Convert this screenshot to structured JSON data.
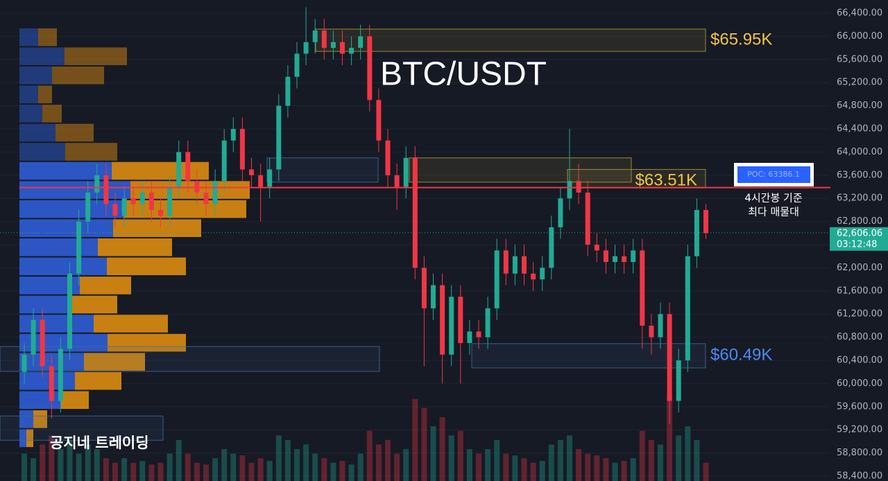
{
  "chart_data": {
    "type": "candlestick",
    "title": "BTC/USDT",
    "watermark": "공지네 트레이딩",
    "up_color": "#22ab94",
    "down_color": "#f23645",
    "grid": true,
    "ylim": [
      58400,
      66400
    ],
    "yticks": [
      {
        "value": 58400,
        "label": "58,400.00"
      },
      {
        "value": 58800,
        "label": "58,800.00"
      },
      {
        "value": 59200,
        "label": "59,200.00"
      },
      {
        "value": 59600,
        "label": "59,600.00"
      },
      {
        "value": 60000,
        "label": "60,000.00"
      },
      {
        "value": 60400,
        "label": "60,400.00"
      },
      {
        "value": 60800,
        "label": "60,800.00"
      },
      {
        "value": 61200,
        "label": "61,200.00"
      },
      {
        "value": 61600,
        "label": "61,600.00"
      },
      {
        "value": 62000,
        "label": "62,000.00"
      },
      {
        "value": 62400,
        "label": "62,400.00"
      },
      {
        "value": 62800,
        "label": "62,800.00"
      },
      {
        "value": 63200,
        "label": "63,200.00"
      },
      {
        "value": 63600,
        "label": "63,600.00"
      },
      {
        "value": 64000,
        "label": "64,000.00"
      },
      {
        "value": 64400,
        "label": "64,400.00"
      },
      {
        "value": 64800,
        "label": "64,800.00"
      },
      {
        "value": 65200,
        "label": "65,200.00"
      },
      {
        "value": 65600,
        "label": "65,600.00"
      },
      {
        "value": 66000,
        "label": "66,000.00"
      },
      {
        "value": 66400,
        "label": "66,400.00"
      }
    ],
    "candles": {
      "open": [
        60200,
        60500,
        61100,
        60300,
        59700,
        60600,
        61900,
        62800,
        63300,
        63600,
        63100,
        62900,
        63200,
        63100,
        63300,
        63000,
        62900,
        63400,
        64000,
        63500,
        63300,
        63100,
        63500,
        64200,
        64400,
        63700,
        63600,
        63400,
        63700,
        64800,
        65300,
        65700,
        65900,
        66100,
        65800,
        65900,
        65700,
        65800,
        66000,
        64900,
        64200,
        63600,
        63400,
        63900,
        62000,
        61300,
        61700,
        60500,
        61500,
        60700,
        60900,
        60800,
        61300,
        62300,
        61900,
        62200,
        61900,
        61800,
        62000,
        62700,
        63200,
        63500,
        63300,
        62400,
        62300,
        62100,
        62200,
        62100,
        62300,
        61000,
        60800,
        61200,
        59700,
        60400,
        62200,
        63000
      ],
      "high": [
        60700,
        61300,
        61300,
        60500,
        60800,
        62100,
        63000,
        63500,
        63800,
        63800,
        63300,
        63400,
        63400,
        63500,
        63500,
        63200,
        63600,
        64200,
        64200,
        63700,
        63500,
        63700,
        64400,
        64600,
        64600,
        63900,
        63800,
        63900,
        65000,
        65500,
        65900,
        66500,
        66300,
        66300,
        66100,
        66100,
        66000,
        66200,
        66200,
        65100,
        64400,
        63800,
        64100,
        64100,
        62200,
        61900,
        61900,
        61700,
        61700,
        61100,
        61100,
        61500,
        62500,
        62500,
        62400,
        62400,
        62100,
        62200,
        62900,
        63400,
        64400,
        63800,
        63500,
        62600,
        62500,
        62400,
        62400,
        62500,
        62500,
        61200,
        61400,
        61400,
        60600,
        62400,
        63200,
        63100
      ],
      "low": [
        60000,
        60300,
        60100,
        59400,
        59500,
        60400,
        61700,
        62600,
        63100,
        62900,
        62700,
        62700,
        62900,
        62900,
        62800,
        62700,
        62700,
        63200,
        63300,
        63100,
        62900,
        62900,
        63300,
        64000,
        63500,
        63400,
        62800,
        63200,
        63500,
        64600,
        65100,
        65500,
        65700,
        65600,
        65600,
        65500,
        65500,
        65600,
        64700,
        64000,
        63400,
        63000,
        63200,
        61800,
        60300,
        61100,
        60000,
        60300,
        60000,
        60500,
        60600,
        60600,
        61100,
        61700,
        61700,
        61700,
        61600,
        61600,
        61800,
        62500,
        63000,
        63100,
        62200,
        62100,
        61900,
        61900,
        61900,
        61900,
        60600,
        60500,
        60600,
        59300,
        59500,
        60200,
        62000,
        62500
      ],
      "close": [
        60500,
        61100,
        60300,
        59700,
        60600,
        61900,
        62800,
        63300,
        63600,
        63100,
        62900,
        63200,
        63100,
        63300,
        63000,
        62900,
        63400,
        64000,
        63500,
        63300,
        63100,
        63500,
        64200,
        64400,
        63700,
        63600,
        63400,
        63700,
        64800,
        65300,
        65700,
        65900,
        66100,
        65800,
        65900,
        65700,
        65800,
        66000,
        64900,
        64200,
        63600,
        63400,
        63900,
        62000,
        61300,
        61700,
        60500,
        61500,
        60700,
        60900,
        60800,
        61300,
        62300,
        61900,
        62200,
        61900,
        61800,
        62000,
        62700,
        63200,
        63500,
        63300,
        62400,
        62300,
        62100,
        62200,
        62100,
        62300,
        61000,
        60800,
        61200,
        59700,
        60400,
        62200,
        63000,
        62600
      ],
      "volume": [
        30,
        25,
        40,
        50,
        35,
        45,
        30,
        40,
        35,
        25,
        20,
        25,
        20,
        22,
        18,
        20,
        30,
        45,
        30,
        20,
        18,
        25,
        35,
        30,
        28,
        20,
        25,
        22,
        50,
        45,
        35,
        40,
        30,
        25,
        20,
        22,
        18,
        30,
        55,
        40,
        45,
        30,
        35,
        90,
        80,
        60,
        70,
        50,
        55,
        35,
        30,
        35,
        45,
        30,
        28,
        25,
        20,
        22,
        40,
        45,
        50,
        35,
        30,
        28,
        25,
        20,
        22,
        25,
        55,
        45,
        40,
        95,
        50,
        60,
        45,
        20
      ]
    },
    "volume_profile": {
      "bins": [
        66150,
        65820,
        65490,
        65160,
        64830,
        64500,
        64170,
        63840,
        63510,
        63180,
        62850,
        62520,
        62190,
        61860,
        61530,
        61200,
        60870,
        60540,
        60210,
        59880,
        59550,
        59220,
        58890
      ],
      "up": [
        27,
        65,
        47,
        27,
        33,
        52,
        66,
        133,
        160,
        150,
        135,
        113,
        126,
        87,
        73,
        107,
        127,
        93,
        80,
        60,
        20,
        10
      ],
      "down": [
        27,
        90,
        75,
        20,
        28,
        55,
        75,
        140,
        172,
        177,
        127,
        107,
        114,
        74,
        68,
        107,
        113,
        88,
        67,
        40,
        20,
        10
      ],
      "up_color": "#2f62e0",
      "down_color": "#e8930f"
    },
    "zones": [
      {
        "top": 66125,
        "bottom": 65740,
        "color": "#b8a23a",
        "label": "$65.95K",
        "label_color": "#f5c542"
      },
      {
        "top": 63900,
        "bottom": 63480,
        "color": "#b8a23a"
      },
      {
        "top": 63700,
        "bottom": 63380,
        "color": "#b8a23a",
        "label": "$63.51K",
        "label_color": "#f5c542"
      },
      {
        "top": 63900,
        "bottom": 63480,
        "color": "#3f6fa0"
      },
      {
        "top": 60690,
        "bottom": 60270,
        "color": "#3f6fa0",
        "label": "$60.49K",
        "label_color": "#4d8af0"
      },
      {
        "top": 60640,
        "bottom": 60210,
        "color": "#3f6fa0"
      },
      {
        "top": 59440,
        "bottom": 59020,
        "color": "#3f6fa0"
      }
    ],
    "poc": {
      "value": 63386.1,
      "label": "POC: 63386.1",
      "color": "#f23645"
    },
    "poc_note": [
      "4시간봉 기준",
      "최다 매물대"
    ],
    "last_price": {
      "value": 62606.06,
      "label": "62,606.06"
    },
    "countdown": "03:12:48"
  }
}
